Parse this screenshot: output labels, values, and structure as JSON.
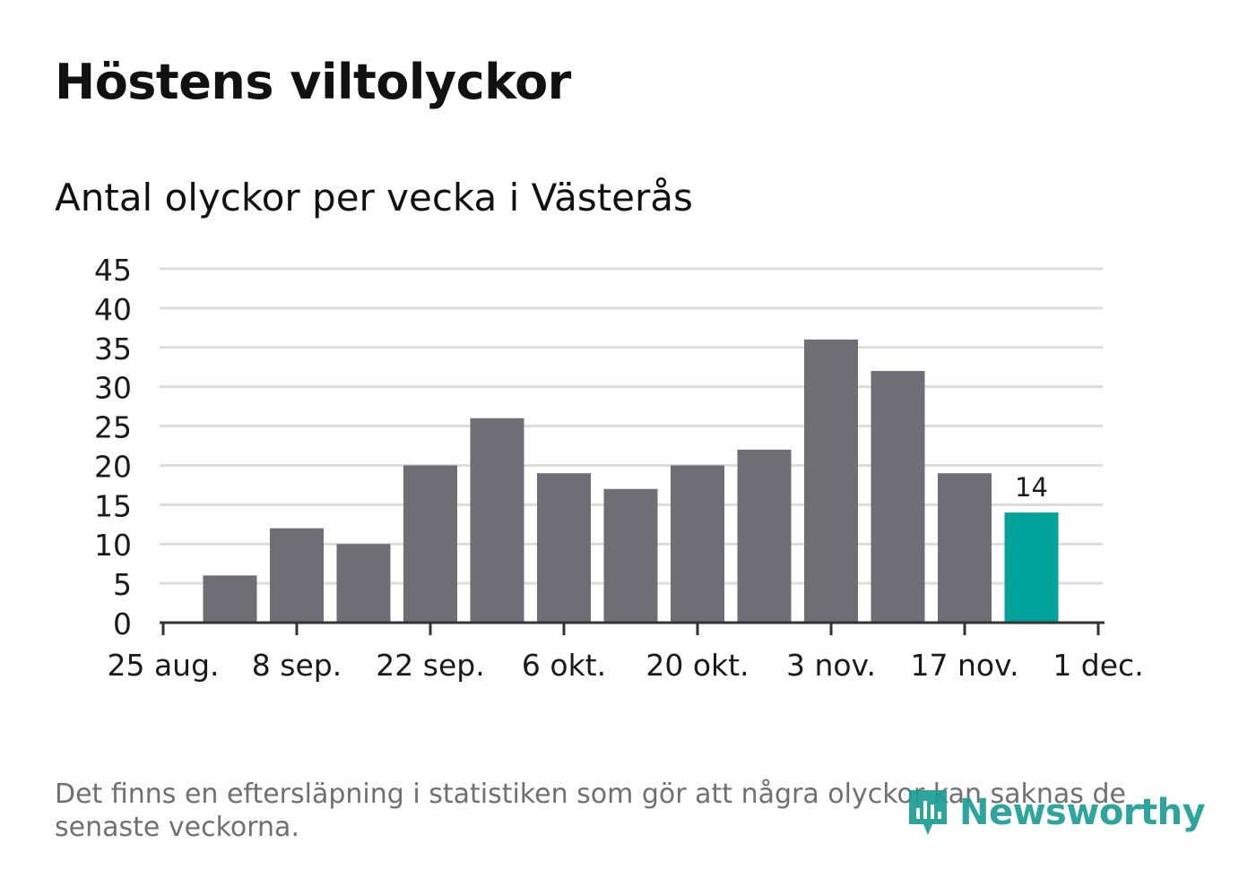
{
  "title": "Höstens viltolyckor",
  "subtitle": "Antal olyckor per vecka i Västerås",
  "footnote": "Det finns en eftersläpning i statistiken som gör att några olyckor kan saknas de senaste veckorna.",
  "brand": "Newsworthy",
  "colors": {
    "bar": "#6f6e74",
    "highlight": "#00a39a",
    "grid": "#dcdcdc",
    "axis": "#333333",
    "brand": "#1c9e95"
  },
  "chart_data": {
    "type": "bar",
    "x_ticks": [
      "25 aug.",
      "8 sep.",
      "22 sep.",
      "6 okt.",
      "20 okt.",
      "3 nov.",
      "17 nov.",
      "1 dec."
    ],
    "y_ticks": [
      0,
      5,
      10,
      15,
      20,
      25,
      30,
      35,
      40,
      45
    ],
    "ylim": [
      0,
      45
    ],
    "grid": true,
    "weeks": [
      "1 sep.",
      "8 sep.",
      "15 sep.",
      "22 sep.",
      "29 sep.",
      "6 okt.",
      "13 okt.",
      "20 okt.",
      "27 okt.",
      "3 nov.",
      "10 nov.",
      "17 nov.",
      "24 nov."
    ],
    "values": [
      6,
      12,
      10,
      20,
      26,
      19,
      17,
      20,
      22,
      36,
      32,
      19,
      14
    ],
    "highlight_index": 12,
    "labeled_value": "14"
  }
}
